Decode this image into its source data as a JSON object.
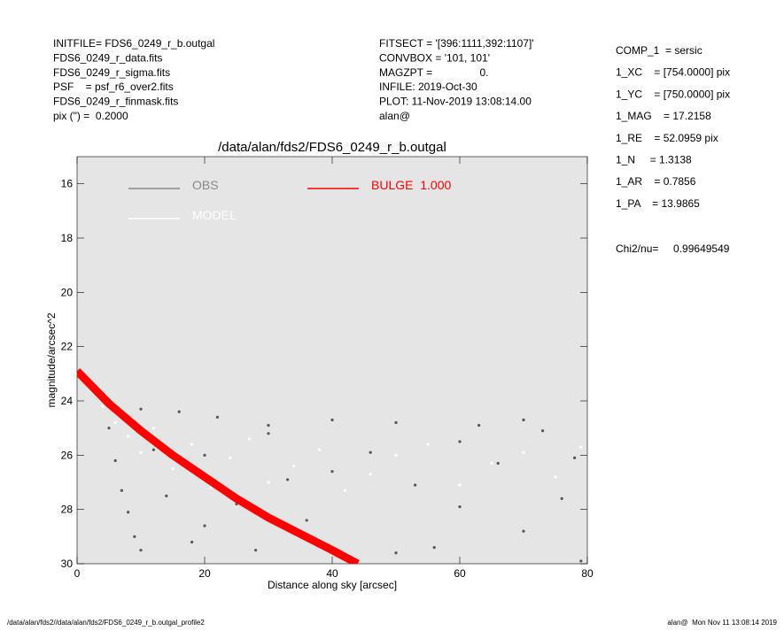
{
  "header": {
    "left": [
      "INITFILE= FDS6_0249_r_b.outgal",
      "FDS6_0249_r_data.fits",
      "FDS6_0249_r_sigma.fits",
      "PSF    = psf_r6_over2.fits",
      "FDS6_0249_r_finmask.fits",
      "pix (\") =  0.2000"
    ],
    "middle": [
      "FITSECT = '[396:1111,392:1107]'",
      "CONVBOX = '101, 101'",
      "MAGZPT =                0.",
      "INFILE: 2019-Oct-30",
      "PLOT: 11-Nov-2019 13:08:14.00",
      "alan@"
    ]
  },
  "parameters": [
    "COMP_1  = sersic",
    "1_XC    = [754.0000] pix",
    "1_YC    = [750.0000] pix",
    "1_MAG    = 17.2158",
    "1_RE    = 52.0959 pix",
    "1_N     = 1.3138",
    "1_AR    = 0.7856",
    "1_PA    = 13.9865"
  ],
  "fit_quality": "Chi2/nu=     0.99649549",
  "footer": {
    "left": "/data/alan/fds2//data/alan/fds2/FDS6_0249_r_b.outgal_profile2",
    "right": "alan@  Mon Nov 11 13:08:14 2019"
  },
  "chart_data": {
    "type": "scatter",
    "title": "/data/alan/fds2/FDS6_0249_r_b.outgal",
    "xlabel": "Distance along sky [arcsec]",
    "ylabel": "magnitude/arcsec^2",
    "xlim": [
      0,
      80
    ],
    "xticks": [
      0,
      20,
      40,
      60,
      80
    ],
    "ylim": [
      15,
      30
    ],
    "yticks": [
      16,
      18,
      20,
      22,
      24,
      26,
      28,
      30
    ],
    "y_inverted": true,
    "series": [
      {
        "name": "OBS",
        "color": "#555555",
        "legend_color": "#888888",
        "mode": "points",
        "x": [
          1,
          2,
          3,
          4,
          5,
          6,
          7,
          8,
          9,
          10,
          12,
          14,
          16,
          18,
          20,
          22,
          25,
          28,
          30,
          33,
          36,
          40,
          43,
          46,
          50,
          53,
          56,
          60,
          63,
          66,
          70,
          73,
          76,
          79,
          10,
          20,
          30,
          40,
          50,
          60,
          70,
          78
        ],
        "values": [
          23.0,
          23.3,
          23.6,
          24.0,
          25.0,
          26.2,
          27.3,
          28.1,
          29.0,
          24.3,
          25.8,
          27.5,
          24.4,
          29.2,
          26.0,
          24.6,
          27.8,
          29.5,
          25.2,
          26.9,
          28.4,
          24.7,
          29.8,
          25.9,
          24.8,
          27.1,
          29.4,
          25.5,
          24.9,
          26.3,
          28.8,
          25.1,
          27.6,
          29.9,
          29.5,
          28.6,
          24.9,
          26.6,
          29.6,
          27.9,
          24.7,
          26.1
        ]
      },
      {
        "name": "MODEL",
        "color": "#ffffff",
        "legend_color": "#ffffff",
        "mode": "points",
        "x": [
          2,
          4,
          6,
          8,
          10,
          12,
          15,
          18,
          21,
          24,
          27,
          30,
          34,
          38,
          42,
          46,
          50,
          55,
          60,
          65,
          70,
          75,
          79
        ],
        "values": [
          23.4,
          24.2,
          24.8,
          25.3,
          25.9,
          25.0,
          26.5,
          25.6,
          27.2,
          26.1,
          25.4,
          27.0,
          26.4,
          25.8,
          27.3,
          26.7,
          26.0,
          25.6,
          27.1,
          26.3,
          25.9,
          26.8,
          25.7
        ]
      },
      {
        "name": "BULGE  1.000",
        "color": "#ff0000",
        "legend_color": "#ff0000",
        "mode": "line",
        "x": [
          0,
          5,
          10,
          15,
          20,
          25,
          30,
          35,
          40,
          44
        ],
        "values": [
          22.9,
          24.1,
          25.1,
          26.0,
          26.8,
          27.6,
          28.3,
          28.9,
          29.5,
          30.0
        ]
      }
    ]
  }
}
